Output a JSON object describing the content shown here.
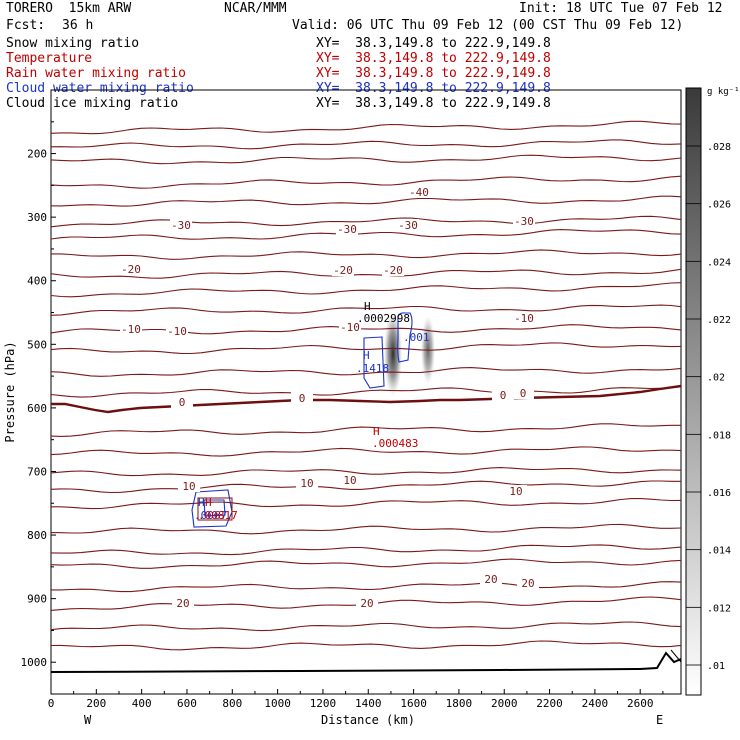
{
  "header": {
    "model": "TORERO  15km ARW",
    "org": "NCAR/MMM",
    "init": "Init: 18 UTC Tue 07 Feb 12",
    "fcst_label": "Fcst:",
    "fcst_value": "36 h",
    "valid": "Valid: 06 UTC Thu 09 Feb 12 (00 CST Thu 09 Feb 12)"
  },
  "fields": [
    {
      "name": "Snow mixing ratio",
      "xy": "XY=  38.3,149.8 to 222.9,149.8",
      "color": "#000000"
    },
    {
      "name": "Temperature",
      "xy": "XY=  38.3,149.8 to 222.9,149.8",
      "color": "#c00000"
    },
    {
      "name": "Rain water mixing ratio",
      "xy": "XY=  38.3,149.8 to 222.9,149.8",
      "color": "#c00000"
    },
    {
      "name": "Cloud water mixing ratio",
      "xy": "XY=  38.3,149.8 to 222.9,149.8",
      "color": "#1a33c8"
    },
    {
      "name": "Cloud ice mixing ratio",
      "xy": "XY=  38.3,149.8 to 222.9,149.8",
      "color": "#000000"
    }
  ],
  "colorbar": {
    "unit": "g kg⁻¹",
    "ticks": [
      ".01",
      ".012",
      ".014",
      ".016",
      ".018",
      ".02",
      ".022",
      ".024",
      ".026",
      ".028"
    ],
    "color_min": "#ffffff",
    "color_max": "#3a3a3a"
  },
  "chart_data": {
    "type": "cross-section",
    "xlabel": "Distance (km)",
    "ylabel": "Pressure (hPa)",
    "xlim": [
      0,
      2780
    ],
    "ylim": [
      1050,
      100
    ],
    "x_ticks": [
      "0",
      "200",
      "400",
      "600",
      "800",
      "1000",
      "1200",
      "1400",
      "1600",
      "1800",
      "2000",
      "2200",
      "2400",
      "2600"
    ],
    "y_ticks": [
      "200",
      "300",
      "400",
      "500",
      "600",
      "700",
      "800",
      "900",
      "1000"
    ],
    "x_end_labels": {
      "left": "W",
      "right": "E"
    },
    "temperature_contours_C": [
      {
        "level": "-40",
        "label_x": 1635
      },
      {
        "level": "-30",
        "label_x": [
          580,
          1360,
          1570,
          2090
        ]
      },
      {
        "level": "-20",
        "label_x": [
          360,
          1280,
          1490
        ]
      },
      {
        "level": "-10",
        "label_x": [
          350,
          550,
          1310,
          2090
        ]
      },
      {
        "level": "0",
        "label_x": [
          570,
          1110,
          2000,
          2080
        ],
        "freezing_level_hPa": 595
      },
      {
        "level": "10",
        "label_x": [
          600,
          1110,
          1310,
          2040
        ]
      },
      {
        "level": "20",
        "label_x": [
          580,
          1400,
          1940,
          2050
        ]
      }
    ],
    "temperature_labels": [
      "-40",
      "-30",
      "-30",
      "-30",
      "-30",
      "-20",
      "-20",
      "-20",
      "-10",
      "-10",
      "-10",
      "-10",
      "0",
      "0",
      "0",
      "0",
      "10",
      "10",
      "10",
      "10",
      "20",
      "20",
      "20",
      "20"
    ],
    "annotations": [
      {
        "text": "H",
        "value": ".0002998",
        "x_km": 1395,
        "p_hPa": 472,
        "field": "Cloud ice mixing ratio"
      },
      {
        "text": "H",
        "value": ".1418",
        "x_km": 1385,
        "p_hPa": 535,
        "field": "Cloud water mixing ratio"
      },
      {
        "text": "",
        "value": ".001",
        "x_km": 1600,
        "p_hPa": 510,
        "field": "Cloud water mixing ratio"
      },
      {
        "text": "H",
        "value": ".000483",
        "x_km": 1455,
        "p_hPa": 650,
        "field": "Rain water mixing ratio"
      },
      {
        "text": "H",
        "value": ".0067",
        "x_km": 680,
        "p_hPa": 760,
        "field": "Cloud water mixing ratio"
      },
      {
        "text": "H",
        "value": ".00817",
        "x_km": 700,
        "p_hPa": 760,
        "field": "Rain water mixing ratio"
      }
    ],
    "snow_shading": [
      {
        "x_km": 1505,
        "p_top_hPa": 460,
        "p_bot_hPa": 590,
        "max": 0.03
      },
      {
        "x_km": 1665,
        "p_top_hPa": 470,
        "p_bot_hPa": 570,
        "max": 0.022
      }
    ]
  }
}
